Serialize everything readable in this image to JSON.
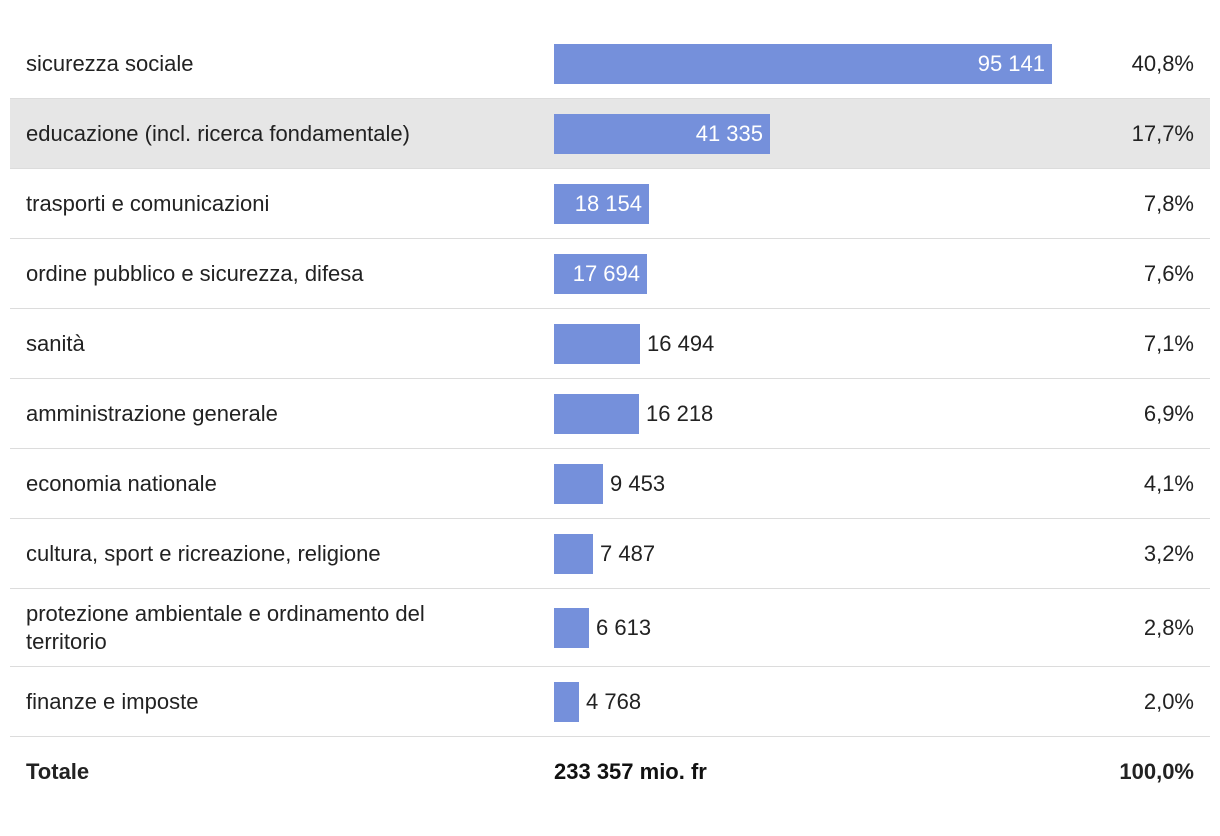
{
  "chart_data": {
    "type": "bar",
    "orientation": "horizontal",
    "unit": "mio. fr",
    "categories": [
      "sicurezza sociale",
      "educazione (incl. ricerca fondamentale)",
      "trasporti e comunicazioni",
      "ordine pubblico e sicurezza, difesa",
      "sanità",
      "amministrazione generale",
      "economia nationale",
      "cultura, sport e ricreazione, religione",
      "protezione ambientale e ordinamento del territorio",
      "finanze e imposte"
    ],
    "values": [
      95141,
      41335,
      18154,
      17694,
      16494,
      16218,
      9453,
      7487,
      6613,
      4768
    ],
    "value_labels": [
      "95 141",
      "41 335",
      "18 154",
      "17 694",
      "16 494",
      "16 218",
      "9 453",
      "7 487",
      "6 613",
      "4 768"
    ],
    "shares": [
      "40,8%",
      "17,7%",
      "7,8%",
      "7,6%",
      "7,1%",
      "6,9%",
      "4,1%",
      "3,2%",
      "2,8%",
      "2,0%"
    ],
    "bar_color": "#7590db",
    "highlight_row_color": "#e6e6e6",
    "highlighted_index": 1,
    "total": {
      "label": "Totale",
      "value": "233 357 mio. fr",
      "share": "100,0%"
    }
  }
}
